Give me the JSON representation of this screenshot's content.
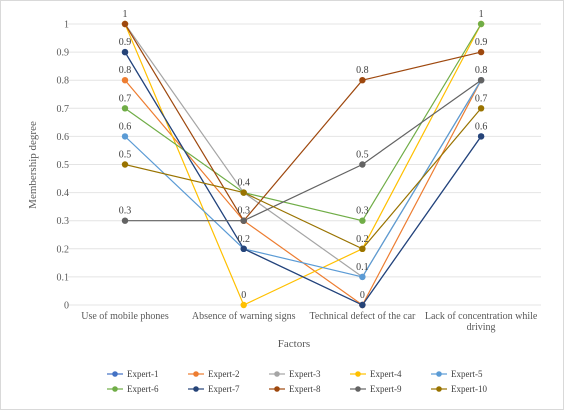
{
  "chart_data": {
    "type": "line",
    "title": "",
    "xlabel": "Factors",
    "ylabel": "Membership degree",
    "ylim": [
      0,
      1
    ],
    "y_ticks": [
      "0",
      "0.1",
      "0.2",
      "0.3",
      "0.4",
      "0.5",
      "0.6",
      "0.7",
      "0.8",
      "0.9",
      "1"
    ],
    "grid": true,
    "legend_position": "bottom",
    "categories": [
      [
        "Use of mobile phones"
      ],
      [
        "Absence of warning signs"
      ],
      [
        "Technical defect of the car"
      ],
      [
        "Lack of concentration while",
        "driving"
      ]
    ],
    "series": [
      {
        "name": "Expert-1",
        "color": "#4472c4",
        "values": [
          0.9,
          0.2,
          0.0,
          0.6
        ]
      },
      {
        "name": "Expert-2",
        "color": "#ed7d31",
        "values": [
          0.8,
          0.3,
          0.0,
          0.8
        ]
      },
      {
        "name": "Expert-3",
        "color": "#a5a5a5",
        "values": [
          1.0,
          0.4,
          0.1,
          0.8
        ]
      },
      {
        "name": "Expert-4",
        "color": "#ffc000",
        "values": [
          1.0,
          0.0,
          0.2,
          1.0
        ]
      },
      {
        "name": "Expert-5",
        "color": "#5b9bd5",
        "values": [
          0.6,
          0.2,
          0.1,
          0.8
        ]
      },
      {
        "name": "Expert-6",
        "color": "#70ad47",
        "values": [
          0.7,
          0.4,
          0.3,
          1.0
        ]
      },
      {
        "name": "Expert-7",
        "color": "#264478",
        "values": [
          0.9,
          0.2,
          0.0,
          0.6
        ]
      },
      {
        "name": "Expert-8",
        "color": "#9e480e",
        "values": [
          1.0,
          0.3,
          0.8,
          0.9
        ]
      },
      {
        "name": "Expert-9",
        "color": "#636363",
        "values": [
          0.3,
          0.3,
          0.5,
          0.8
        ]
      },
      {
        "name": "Expert-10",
        "color": "#997300",
        "values": [
          0.5,
          0.4,
          0.2,
          0.7
        ]
      }
    ],
    "data_labels": [
      {
        "category": 0,
        "value": 1.0,
        "text": "1"
      },
      {
        "category": 0,
        "value": 0.9,
        "text": "0.9"
      },
      {
        "category": 0,
        "value": 0.8,
        "text": "0.8"
      },
      {
        "category": 0,
        "value": 0.7,
        "text": "0.7"
      },
      {
        "category": 0,
        "value": 0.6,
        "text": "0.6"
      },
      {
        "category": 0,
        "value": 0.5,
        "text": "0.5"
      },
      {
        "category": 0,
        "value": 0.3,
        "text": "0.3"
      },
      {
        "category": 1,
        "value": 0.4,
        "text": "0.4"
      },
      {
        "category": 1,
        "value": 0.3,
        "text": "0.3"
      },
      {
        "category": 1,
        "value": 0.2,
        "text": "0.2"
      },
      {
        "category": 1,
        "value": 0.0,
        "text": "0"
      },
      {
        "category": 2,
        "value": 0.8,
        "text": "0.8"
      },
      {
        "category": 2,
        "value": 0.5,
        "text": "0.5"
      },
      {
        "category": 2,
        "value": 0.3,
        "text": "0.3"
      },
      {
        "category": 2,
        "value": 0.2,
        "text": "0.2"
      },
      {
        "category": 2,
        "value": 0.1,
        "text": "0.1"
      },
      {
        "category": 2,
        "value": 0.0,
        "text": "0"
      },
      {
        "category": 3,
        "value": 1.0,
        "text": "1"
      },
      {
        "category": 3,
        "value": 0.9,
        "text": "0.9"
      },
      {
        "category": 3,
        "value": 0.8,
        "text": "0.8"
      },
      {
        "category": 3,
        "value": 0.7,
        "text": "0.7"
      },
      {
        "category": 3,
        "value": 0.6,
        "text": "0.6"
      }
    ]
  }
}
